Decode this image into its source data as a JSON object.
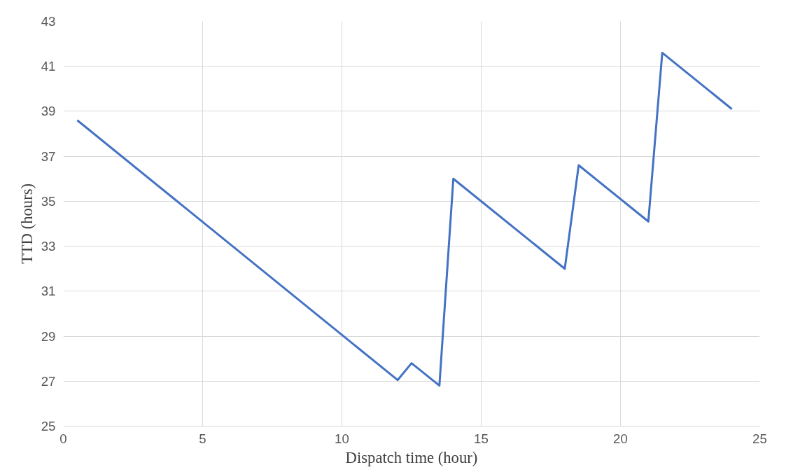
{
  "chart_data": {
    "type": "line",
    "xlabel": "Dispatch time (hour)",
    "ylabel": "TTD (hours)",
    "x": [
      0.5,
      12,
      12.5,
      13.5,
      14,
      18,
      18.5,
      21,
      21.5,
      24
    ],
    "series": [
      {
        "color": "#4472c4",
        "values": [
          38.6,
          27.05,
          27.8,
          26.8,
          36.0,
          32.0,
          36.6,
          34.1,
          41.6,
          39.1
        ]
      }
    ],
    "xlim": [
      0,
      25
    ],
    "xticks": [
      0,
      5,
      10,
      15,
      20,
      25
    ],
    "ylim": [
      25,
      43
    ],
    "yticks": [
      25,
      27,
      29,
      31,
      33,
      35,
      37,
      39,
      41,
      43
    ],
    "grid": true,
    "marker": "none",
    "line_style": "solid"
  }
}
